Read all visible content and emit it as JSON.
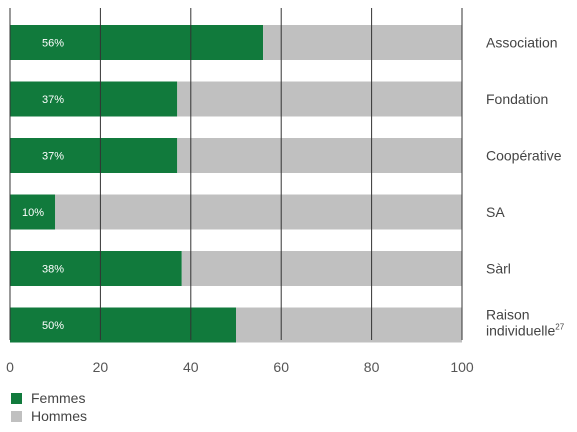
{
  "chart_data": {
    "type": "bar",
    "orientation": "horizontal",
    "stacked": true,
    "title": "",
    "xlabel": "",
    "ylabel": "",
    "xlim": [
      0,
      100
    ],
    "x_ticks": [
      0,
      20,
      40,
      60,
      80,
      100
    ],
    "grid": true,
    "legend_position": "bottom-left",
    "categories": [
      {
        "label": "Association",
        "footnote": ""
      },
      {
        "label": "Fondation",
        "footnote": ""
      },
      {
        "label": "Coopérative",
        "footnote": ""
      },
      {
        "label": "SA",
        "footnote": ""
      },
      {
        "label": "Sàrl",
        "footnote": ""
      },
      {
        "label": "Raison individuelle",
        "footnote": "27"
      }
    ],
    "series": [
      {
        "name": "Femmes",
        "color": "#117a3c",
        "values": [
          56,
          37,
          37,
          10,
          38,
          50
        ],
        "data_labels": [
          "56%",
          "37%",
          "37%",
          "10%",
          "38%",
          "50%"
        ]
      },
      {
        "name": "Hommes",
        "color": "#c0c0c0",
        "values": [
          44,
          63,
          63,
          90,
          62,
          50
        ]
      }
    ]
  }
}
